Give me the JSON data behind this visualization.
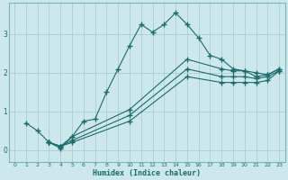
{
  "xlabel": "Humidex (Indice chaleur)",
  "bg_color": "#cce8ec",
  "grid_color": "#aacdd4",
  "line_color": "#1a6b6b",
  "xlim": [
    -0.5,
    23.5
  ],
  "ylim": [
    -0.3,
    3.8
  ],
  "yticks": [
    0,
    1,
    2,
    3
  ],
  "xticks": [
    0,
    1,
    2,
    3,
    4,
    5,
    6,
    7,
    8,
    9,
    10,
    11,
    12,
    13,
    14,
    15,
    16,
    17,
    18,
    19,
    20,
    21,
    22,
    23
  ],
  "series1_x": [
    1,
    2,
    3,
    4,
    5,
    6,
    7,
    8,
    9,
    10,
    11,
    12,
    13,
    14,
    15,
    16,
    17,
    18,
    19,
    20,
    21,
    22,
    23
  ],
  "series1_y": [
    0.7,
    0.5,
    0.2,
    0.05,
    0.35,
    0.75,
    0.8,
    1.5,
    2.1,
    2.7,
    3.25,
    3.05,
    3.25,
    3.55,
    3.25,
    2.9,
    2.45,
    2.35,
    2.1,
    2.05,
    1.9,
    1.95,
    2.1
  ],
  "series2_x": [
    3,
    4,
    5,
    10,
    15,
    18,
    19,
    20,
    21,
    22,
    23
  ],
  "series2_y": [
    0.2,
    0.1,
    0.35,
    1.05,
    2.35,
    2.1,
    2.05,
    2.05,
    2.0,
    1.95,
    2.1
  ],
  "series3_x": [
    3,
    4,
    5,
    10,
    15,
    18,
    19,
    20,
    21,
    22,
    23
  ],
  "series3_y": [
    0.2,
    0.1,
    0.25,
    0.9,
    2.1,
    1.9,
    1.9,
    1.9,
    1.85,
    1.9,
    2.05
  ],
  "series4_x": [
    3,
    4,
    5,
    10,
    15,
    18,
    19,
    20,
    21,
    22,
    23
  ],
  "series4_y": [
    0.2,
    0.1,
    0.2,
    0.75,
    1.9,
    1.75,
    1.75,
    1.75,
    1.75,
    1.8,
    2.05
  ]
}
